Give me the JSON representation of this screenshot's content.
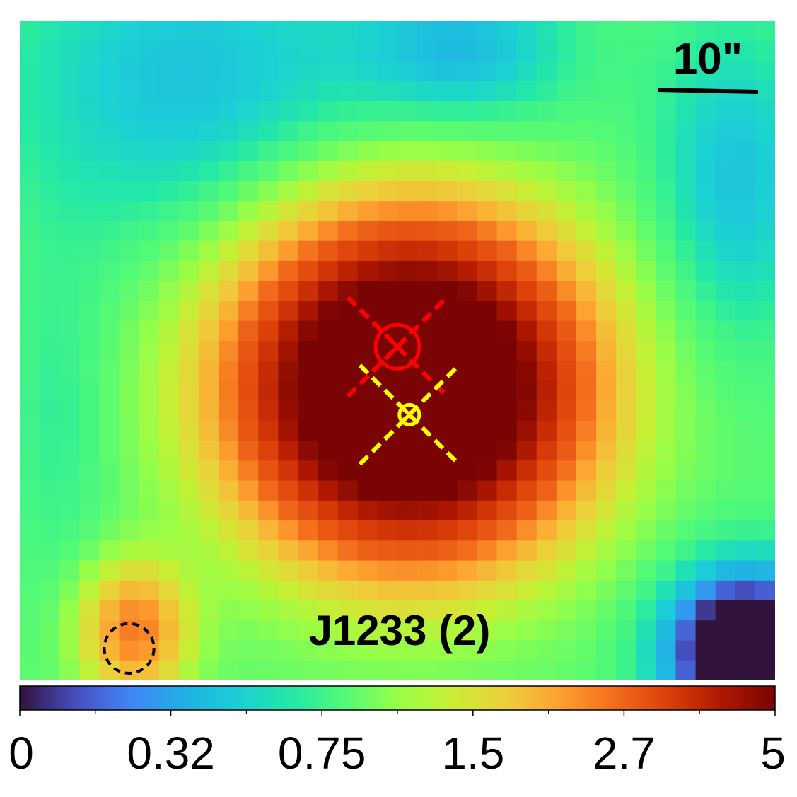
{
  "chart_data": {
    "type": "heatmap",
    "title": "",
    "panel_label": "J1233 (2)",
    "scale_bar_label": "10\"",
    "colorbar": {
      "scale": "stretched",
      "vmin": 0,
      "vmax": 5,
      "tick_labels": [
        "0",
        "0.32",
        "0.75",
        "1.5",
        "2.7",
        "5"
      ],
      "tick_values": [
        0,
        0.32,
        0.75,
        1.5,
        2.7,
        5
      ],
      "colormap": "turbo"
    },
    "grid": {
      "rows": 33,
      "cols": 38
    },
    "field": {
      "background": 0.9,
      "components": [
        {
          "kind": "gaussian",
          "center_col": 19.6,
          "center_row": 18.4,
          "sigma_col": 5.2,
          "sigma_row": 5.0,
          "peak": 7.5
        },
        {
          "kind": "gaussian",
          "center_col": 5.8,
          "center_row": 30.5,
          "sigma_col": 1.8,
          "sigma_row": 2.2,
          "peak": 1.6
        },
        {
          "kind": "gaussian",
          "center_col": 8.5,
          "center_row": 3.0,
          "sigma_col": 7.0,
          "sigma_row": 6.0,
          "peak": -0.45
        },
        {
          "kind": "gaussian",
          "center_col": 36.5,
          "center_row": 31.5,
          "sigma_col": 3.0,
          "sigma_row": 3.0,
          "peak": -1.3
        },
        {
          "kind": "gaussian",
          "center_col": 22.5,
          "center_row": 1.5,
          "sigma_col": 4.0,
          "sigma_row": 3.0,
          "peak": -0.45
        },
        {
          "kind": "gaussian",
          "center_col": 36.0,
          "center_row": 8.0,
          "sigma_col": 3.0,
          "sigma_row": 6.0,
          "peak": -0.45
        },
        {
          "kind": "gaussian",
          "center_col": 2.0,
          "center_row": 20.0,
          "sigma_col": 2.0,
          "sigma_row": 6.0,
          "peak": -0.2
        }
      ]
    },
    "markers": [
      {
        "name": "red-source",
        "color": "#ff0000",
        "col": 19.0,
        "row": 16.3,
        "circle_radius": 1.1,
        "cross": "x",
        "dashed_diagonals": true
      },
      {
        "name": "yellow-source",
        "color": "#ffff00",
        "col": 19.6,
        "row": 19.7,
        "circle_radius": 0.5,
        "cross": "x",
        "dashed_diagonals": true
      },
      {
        "name": "beam",
        "color": "#000000",
        "col": 5.5,
        "row": 31.4,
        "circle_radius": 1.25,
        "dashed": true
      }
    ]
  }
}
